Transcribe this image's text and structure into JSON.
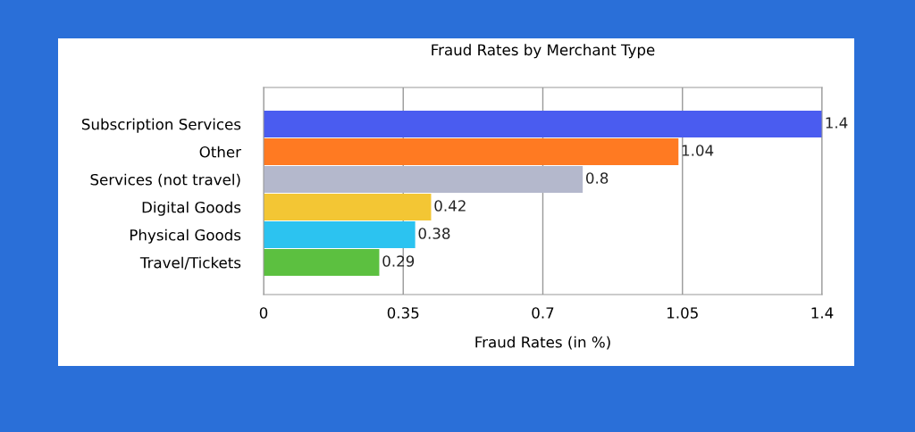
{
  "chart_data": {
    "type": "bar",
    "orientation": "horizontal",
    "title": "Fraud Rates by Merchant Type",
    "xlabel": "Fraud Rates (in %)",
    "categories": [
      "Subscription Services",
      "Other",
      "Services (not travel)",
      "Digital Goods",
      "Physical Goods",
      "Travel/Tickets"
    ],
    "values": [
      1.4,
      1.04,
      0.8,
      0.42,
      0.38,
      0.29
    ],
    "colors": [
      "#4a5cf0",
      "#ff7a22",
      "#b4b8cc",
      "#f3c634",
      "#2cc3f0",
      "#5cc040"
    ],
    "xlim": [
      0,
      1.4
    ],
    "xticks": [
      0,
      0.35,
      0.7,
      1.05,
      1.4
    ],
    "grid": "x",
    "data_labels": true
  }
}
